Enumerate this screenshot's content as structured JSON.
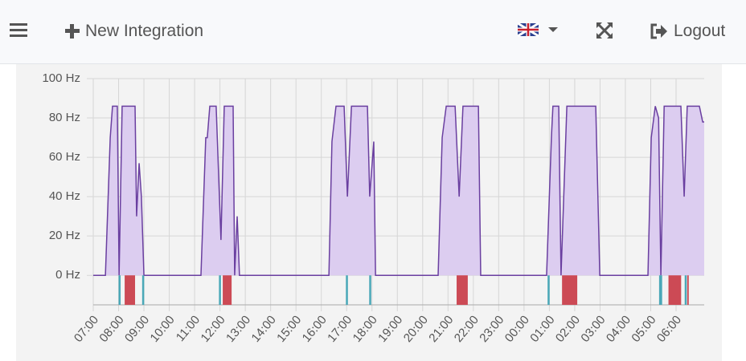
{
  "header": {
    "new_integration": "New Integration",
    "logout": "Logout"
  },
  "chart_data": {
    "type": "area",
    "x": [
      7.0,
      7.48,
      7.67,
      7.76,
      7.95,
      8.02,
      8.14,
      8.65,
      8.71,
      8.81,
      8.9,
      9.0,
      11.25,
      11.44,
      11.5,
      11.6,
      11.85,
      12.04,
      12.17,
      12.52,
      12.58,
      12.68,
      12.77,
      16.3,
      16.42,
      16.58,
      16.9,
      17.03,
      17.19,
      17.82,
      17.91,
      18.07,
      18.14,
      20.61,
      20.77,
      20.93,
      21.28,
      21.44,
      21.59,
      22.2,
      22.29,
      24.89,
      25.08,
      25.14,
      25.37,
      25.46,
      25.69,
      26.83,
      26.99,
      28.89,
      29.02,
      29.18,
      29.31,
      29.4,
      29.53,
      30.19,
      30.32,
      30.44,
      30.92,
      31.05,
      31.11
    ],
    "series": [
      {
        "color": "#6a3fa0",
        "fill": "#dccdf0",
        "values": [
          0,
          0,
          70,
          86,
          86,
          0,
          86,
          86,
          30,
          57,
          40,
          0,
          0,
          70,
          70,
          86,
          86,
          18,
          86,
          86,
          0,
          30,
          0,
          0,
          68,
          86,
          86,
          40,
          86,
          86,
          40,
          68,
          0,
          0,
          70,
          86,
          86,
          40,
          86,
          86,
          0,
          0,
          70,
          86,
          86,
          0,
          86,
          86,
          0,
          0,
          70,
          86,
          80,
          0,
          86,
          86,
          40,
          86,
          86,
          78,
          78
        ]
      }
    ],
    "events": [
      {
        "color": "#4aa8b8",
        "starts": [
          8.0,
          8.93,
          11.96,
          16.97,
          17.89,
          24.93,
          29.33,
          30.34
        ],
        "ends": [
          8.08,
          9.01,
          12.04,
          17.05,
          17.97,
          25.01,
          29.45,
          30.42
        ]
      },
      {
        "color": "#cc4a55",
        "starts": [
          8.24,
          12.11,
          21.34,
          25.5,
          29.7,
          30.44
        ],
        "ends": [
          8.65,
          12.46,
          21.78,
          26.1,
          30.2,
          30.5
        ]
      }
    ],
    "xlim": [
      7,
      31.11
    ],
    "ylim": [
      -15,
      100
    ],
    "xticks": [
      {
        "value": 7,
        "label": "07:00"
      },
      {
        "value": 8,
        "label": "08:00"
      },
      {
        "value": 9,
        "label": "09:00"
      },
      {
        "value": 10,
        "label": "10:00"
      },
      {
        "value": 11,
        "label": "11:00"
      },
      {
        "value": 12,
        "label": "12:00"
      },
      {
        "value": 13,
        "label": "13:00"
      },
      {
        "value": 14,
        "label": "14:00"
      },
      {
        "value": 15,
        "label": "15:00"
      },
      {
        "value": 16,
        "label": "16:00"
      },
      {
        "value": 17,
        "label": "17:00"
      },
      {
        "value": 18,
        "label": "18:00"
      },
      {
        "value": 19,
        "label": "19:00"
      },
      {
        "value": 20,
        "label": "20:00"
      },
      {
        "value": 21,
        "label": "21:00"
      },
      {
        "value": 22,
        "label": "22:00"
      },
      {
        "value": 23,
        "label": "23:00"
      },
      {
        "value": 24,
        "label": "00:00"
      },
      {
        "value": 25,
        "label": "01:00"
      },
      {
        "value": 26,
        "label": "02:00"
      },
      {
        "value": 27,
        "label": "03:00"
      },
      {
        "value": 28,
        "label": "04:00"
      },
      {
        "value": 29,
        "label": "05:00"
      },
      {
        "value": 30,
        "label": "06:00"
      }
    ],
    "yticks": [
      {
        "value": 0,
        "label": "0 Hz"
      },
      {
        "value": 20,
        "label": "20 Hz"
      },
      {
        "value": 40,
        "label": "40 Hz"
      },
      {
        "value": 60,
        "label": "60 Hz"
      },
      {
        "value": 80,
        "label": "80 Hz"
      },
      {
        "value": 100,
        "label": "100 Hz"
      }
    ],
    "grid": true
  }
}
